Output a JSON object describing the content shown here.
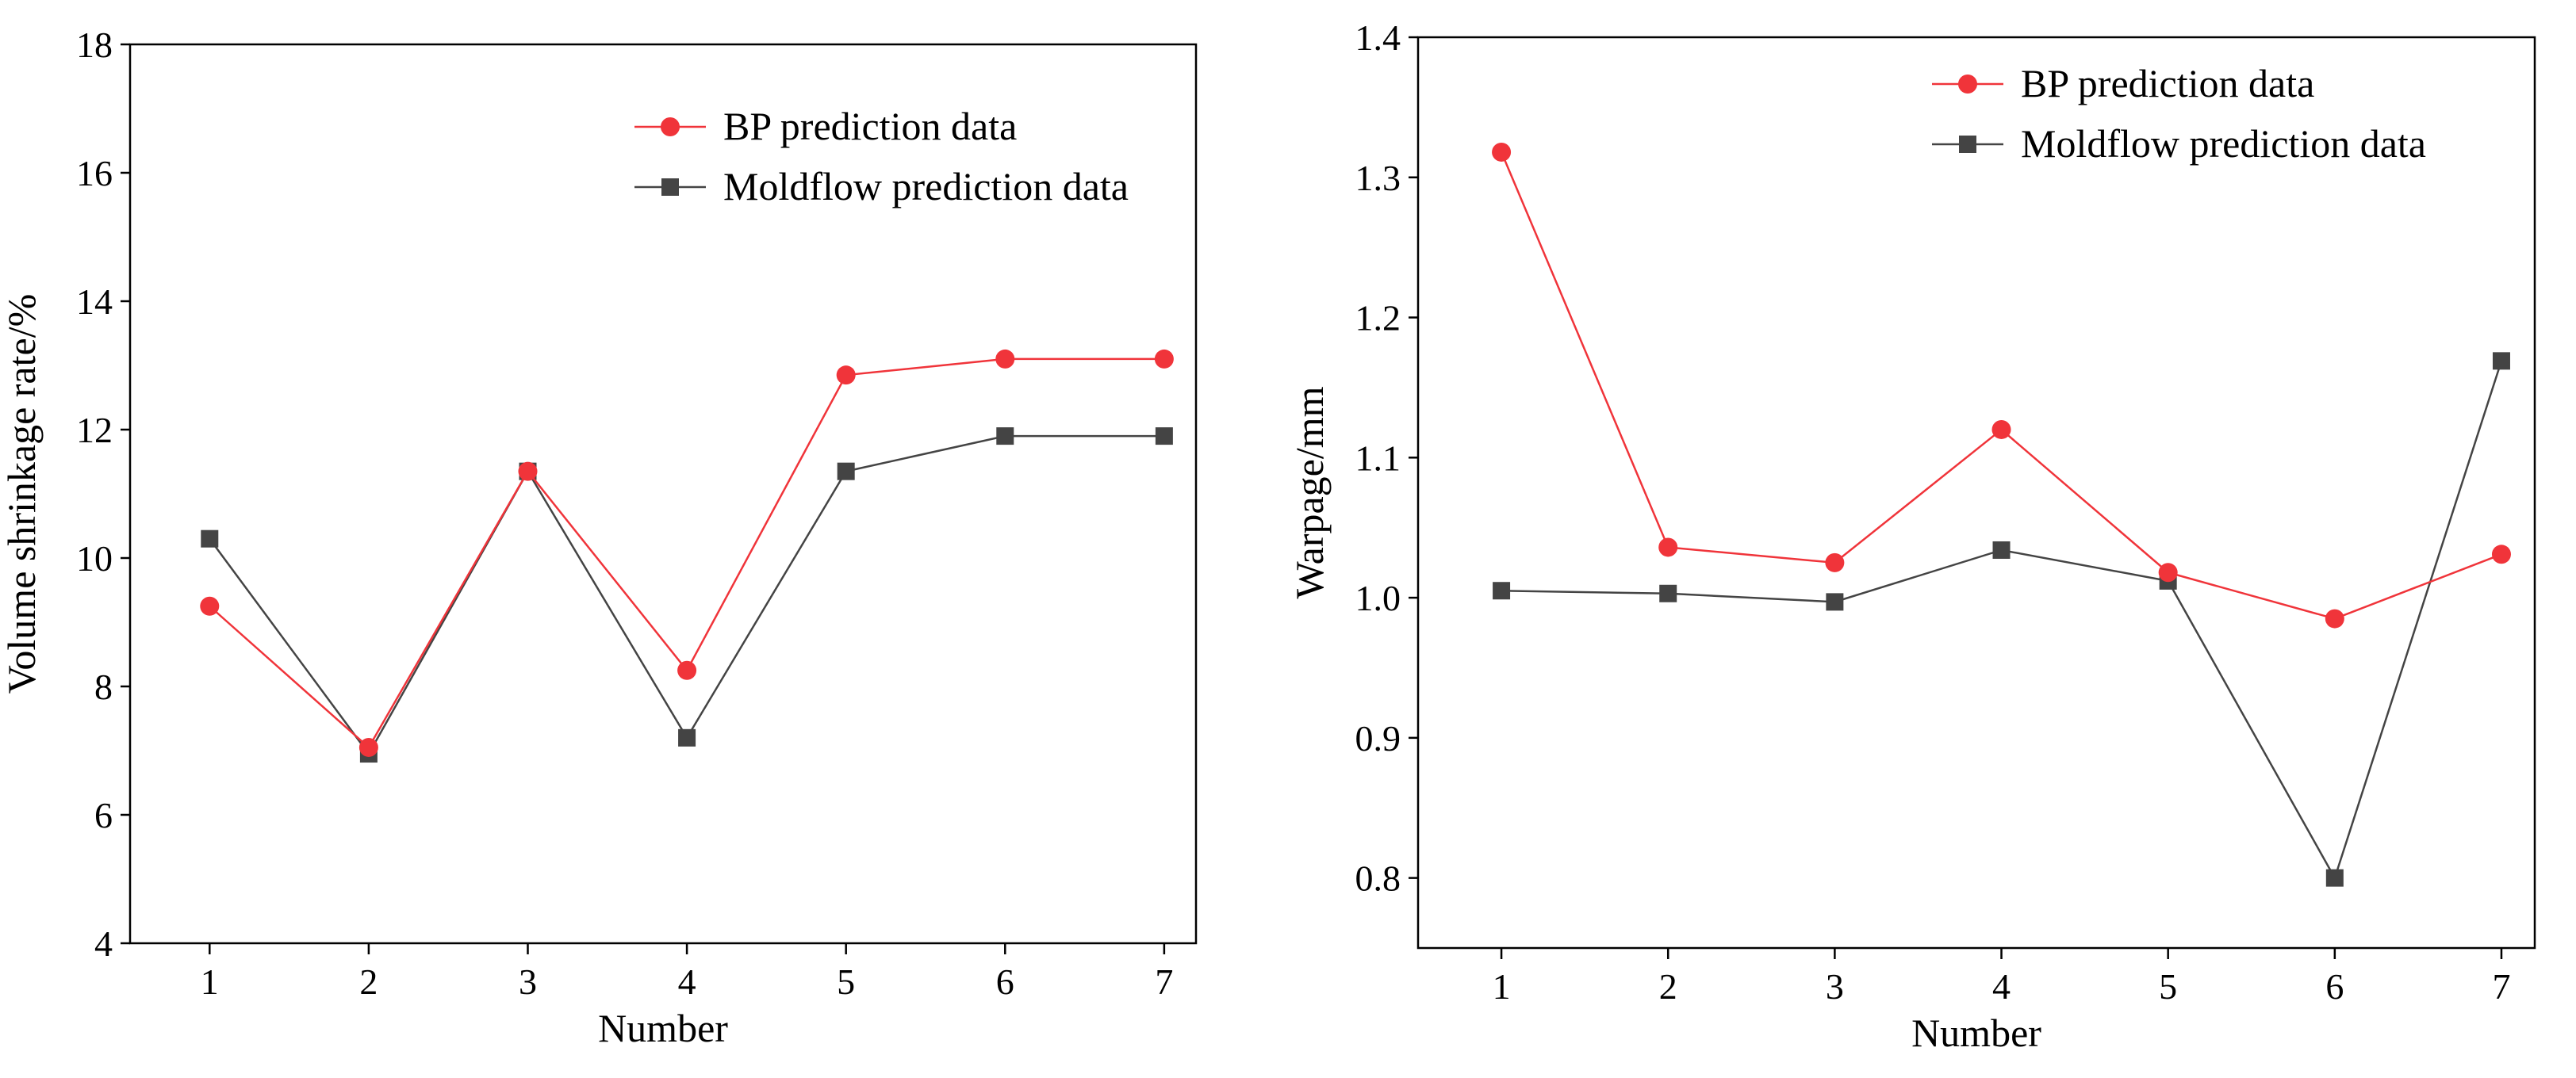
{
  "chart_data": [
    {
      "type": "line",
      "title": "",
      "xlabel": "Number",
      "ylabel": "Volume shrinkage rate/%",
      "x": [
        1,
        2,
        3,
        4,
        5,
        6,
        7
      ],
      "xlim": [
        0.5,
        7.2
      ],
      "ylim": [
        4,
        18
      ],
      "yticks": [
        4,
        6,
        8,
        10,
        12,
        14,
        16,
        18
      ],
      "ytick_labels": [
        "4",
        "6",
        "8",
        "10",
        "12",
        "14",
        "16",
        "18"
      ],
      "xtick_labels": [
        "1",
        "2",
        "3",
        "4",
        "5",
        "6",
        "7"
      ],
      "grid": false,
      "legend_position": "top-right",
      "series": [
        {
          "name": "BP prediction data",
          "marker": "circle",
          "color": "#f0343a",
          "values": [
            9.25,
            7.05,
            11.35,
            8.25,
            12.85,
            13.1,
            13.1
          ]
        },
        {
          "name": "Moldflow prediction data",
          "marker": "square",
          "color": "#444444",
          "values": [
            10.3,
            6.95,
            11.35,
            7.2,
            11.35,
            11.9,
            11.9
          ]
        }
      ]
    },
    {
      "type": "line",
      "title": "",
      "xlabel": "Number",
      "ylabel": "Warpage/mm",
      "x": [
        1,
        2,
        3,
        4,
        5,
        6,
        7
      ],
      "xlim": [
        0.5,
        7.2
      ],
      "ylim": [
        0.75,
        1.4
      ],
      "yticks": [
        0.8,
        0.9,
        1.0,
        1.1,
        1.2,
        1.3,
        1.4
      ],
      "ytick_labels": [
        "0.8",
        "0.9",
        "1.0",
        "1.1",
        "1.2",
        "1.3",
        "1.4"
      ],
      "xtick_labels": [
        "1",
        "2",
        "3",
        "4",
        "5",
        "6",
        "7"
      ],
      "grid": false,
      "legend_position": "top-right",
      "series": [
        {
          "name": "BP prediction data",
          "marker": "circle",
          "color": "#f0343a",
          "values": [
            1.318,
            1.036,
            1.025,
            1.12,
            1.018,
            0.985,
            1.031
          ]
        },
        {
          "name": "Moldflow prediction data",
          "marker": "square",
          "color": "#444444",
          "values": [
            1.005,
            1.003,
            0.997,
            1.034,
            1.012,
            0.8,
            1.169
          ]
        }
      ]
    }
  ]
}
